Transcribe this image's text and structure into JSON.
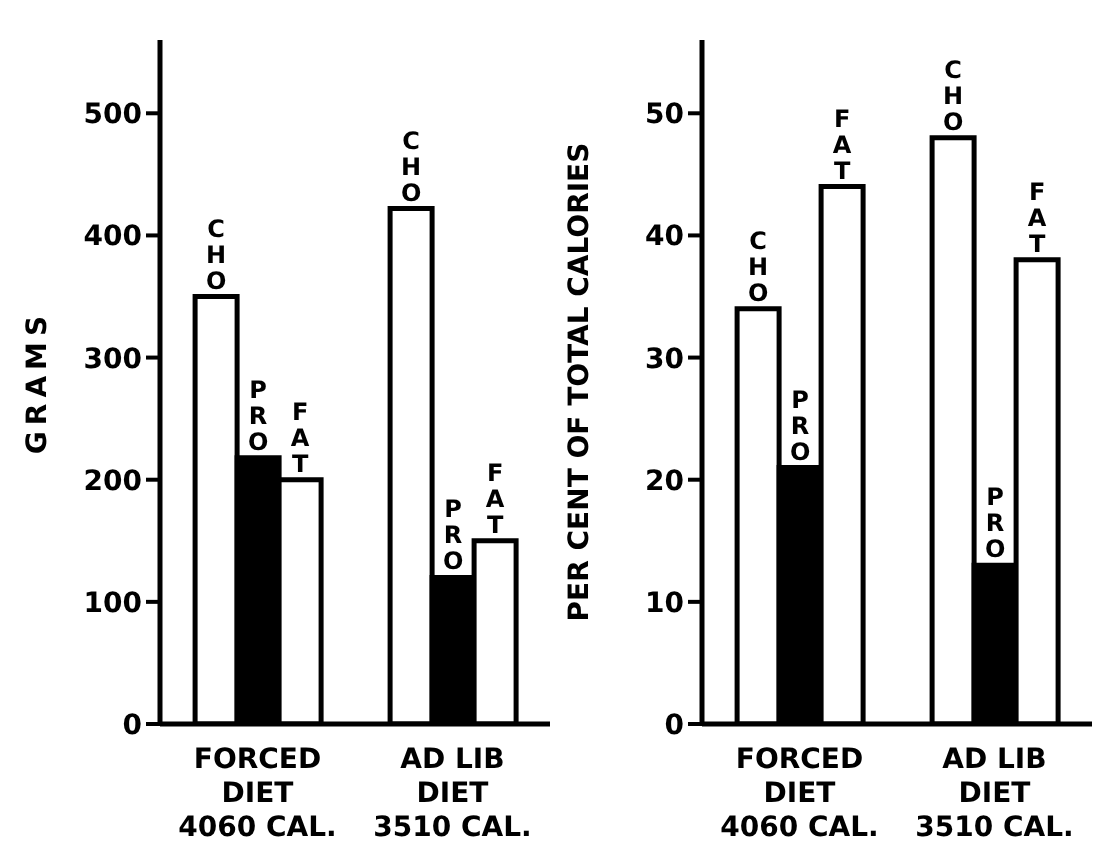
{
  "chart_data": [
    {
      "type": "bar",
      "ylabel": "GRAMS",
      "categories": [
        "FORCED\nDIET\n4060 CAL.",
        "AD LIB\nDIET\n3510 CAL."
      ],
      "ylim": [
        0,
        560
      ],
      "yticks": [
        0,
        100,
        200,
        300,
        400,
        500
      ],
      "grid": false,
      "legend": false,
      "series": [
        {
          "name": "CHO",
          "color": "#ffffff",
          "values": [
            350,
            422
          ]
        },
        {
          "name": "PRO",
          "color": "#000000",
          "values": [
            218,
            120
          ]
        },
        {
          "name": "FAT",
          "color": "#ffffff",
          "values": [
            200,
            150
          ]
        }
      ]
    },
    {
      "type": "bar",
      "ylabel": "PER CENT OF TOTAL CALORIES",
      "categories": [
        "FORCED\nDIET\n4060 CAL.",
        "AD LIB\nDIET\n3510 CAL."
      ],
      "ylim": [
        0,
        56
      ],
      "yticks": [
        0,
        10,
        20,
        30,
        40,
        50
      ],
      "grid": false,
      "legend": false,
      "series": [
        {
          "name": "CHO",
          "color": "#ffffff",
          "values": [
            34,
            48
          ]
        },
        {
          "name": "PRO",
          "color": "#000000",
          "values": [
            21,
            13
          ]
        },
        {
          "name": "FAT",
          "color": "#ffffff",
          "values": [
            44,
            38
          ]
        }
      ]
    }
  ]
}
